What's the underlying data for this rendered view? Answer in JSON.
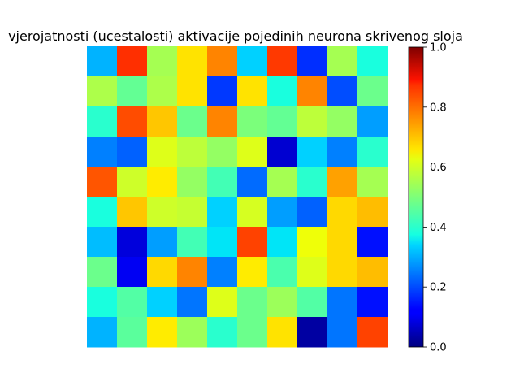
{
  "chart_data": {
    "type": "heatmap",
    "title": "vjerojatnosti (ucestalosti) aktivacije pojedinih neurona skrivenog sloja",
    "colormap": "jet",
    "vmin": 0.0,
    "vmax": 1.0,
    "colorbar_ticks": [
      "0.0",
      "0.2",
      "0.4",
      "0.6",
      "0.8",
      "1.0"
    ],
    "axes_visible": false,
    "rows": 10,
    "cols": 10,
    "values": [
      [
        0.3,
        0.86,
        0.55,
        0.67,
        0.77,
        0.33,
        0.85,
        0.17,
        0.55,
        0.38
      ],
      [
        0.56,
        0.47,
        0.56,
        0.67,
        0.18,
        0.67,
        0.38,
        0.77,
        0.2,
        0.48
      ],
      [
        0.4,
        0.83,
        0.7,
        0.48,
        0.77,
        0.5,
        0.47,
        0.58,
        0.53,
        0.28
      ],
      [
        0.25,
        0.22,
        0.62,
        0.58,
        0.53,
        0.62,
        0.07,
        0.33,
        0.25,
        0.4
      ],
      [
        0.82,
        0.6,
        0.66,
        0.53,
        0.43,
        0.23,
        0.55,
        0.4,
        0.74,
        0.55
      ],
      [
        0.38,
        0.7,
        0.6,
        0.59,
        0.33,
        0.61,
        0.28,
        0.22,
        0.68,
        0.71
      ],
      [
        0.31,
        0.08,
        0.28,
        0.43,
        0.35,
        0.84,
        0.35,
        0.64,
        0.68,
        0.14
      ],
      [
        0.48,
        0.1,
        0.68,
        0.77,
        0.25,
        0.66,
        0.44,
        0.62,
        0.68,
        0.71
      ],
      [
        0.38,
        0.45,
        0.33,
        0.24,
        0.62,
        0.48,
        0.54,
        0.45,
        0.24,
        0.14
      ],
      [
        0.3,
        0.46,
        0.66,
        0.54,
        0.4,
        0.48,
        0.67,
        0.03,
        0.24,
        0.84
      ]
    ]
  }
}
